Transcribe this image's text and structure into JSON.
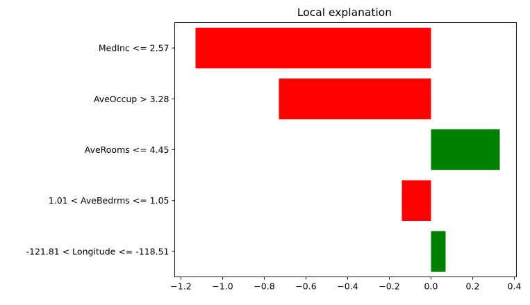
{
  "chart_data": {
    "type": "bar",
    "orientation": "horizontal",
    "title": "Local explanation",
    "xlabel": "",
    "ylabel": "",
    "categories": [
      "MedInc <= 2.57",
      "AveOccup > 3.28",
      "AveRooms <= 4.45",
      "1.01 < AveBedrms <= 1.05",
      "-121.81 < Longitude <= -118.51"
    ],
    "values": [
      -1.13,
      -0.73,
      0.33,
      -0.14,
      0.07
    ],
    "colors": {
      "negative": "#ff0000",
      "positive": "#008000"
    },
    "xlim": [
      -1.23,
      0.41
    ],
    "xticks": [
      {
        "value": -1.2,
        "label": "−1.2"
      },
      {
        "value": -1.0,
        "label": "−1.0"
      },
      {
        "value": -0.8,
        "label": "−0.8"
      },
      {
        "value": -0.6,
        "label": "−0.6"
      },
      {
        "value": -0.4,
        "label": "−0.4"
      },
      {
        "value": -0.2,
        "label": "−0.2"
      },
      {
        "value": 0.0,
        "label": "0.0"
      },
      {
        "value": 0.2,
        "label": "0.2"
      },
      {
        "value": 0.4,
        "label": "0.4"
      }
    ],
    "grid": false,
    "legend": "none"
  }
}
